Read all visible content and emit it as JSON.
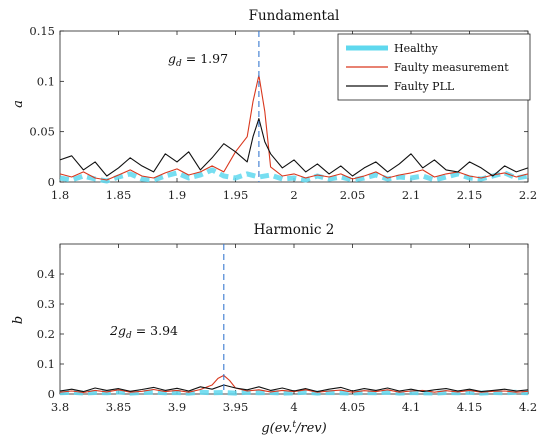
{
  "chart_data": [
    {
      "type": "line",
      "title": "Fundamental",
      "xlabel": "",
      "ylabel": "a",
      "xlim": [
        1.8,
        2.2
      ],
      "ylim": [
        0,
        0.15
      ],
      "xticks": [
        1.8,
        1.85,
        1.9,
        1.95,
        2,
        2.05,
        2.1,
        2.15,
        2.2
      ],
      "xtick_labels": [
        "1.8",
        "1.85",
        "1.9",
        "1.95",
        "2",
        "2.05",
        "2.1",
        "2.15",
        "2.2"
      ],
      "yticks": [
        0,
        0.05,
        0.1,
        0.15
      ],
      "ytick_labels": [
        "0",
        "0.05",
        "0.1",
        "0.15"
      ],
      "grid": false,
      "legend": "top-right",
      "annotation": {
        "text": "g_d = 1.97",
        "x": 1.97
      },
      "vline": {
        "x": 1.97,
        "color": "#3a7ad0",
        "style": "dashed"
      },
      "series": [
        {
          "name": "Healthy",
          "color": "#5fd8ee",
          "x": [
            1.8,
            1.81,
            1.82,
            1.83,
            1.84,
            1.85,
            1.86,
            1.87,
            1.88,
            1.89,
            1.9,
            1.91,
            1.92,
            1.93,
            1.94,
            1.95,
            1.96,
            1.97,
            1.98,
            1.99,
            2.0,
            2.01,
            2.02,
            2.03,
            2.04,
            2.05,
            2.06,
            2.07,
            2.08,
            2.09,
            2.1,
            2.11,
            2.12,
            2.13,
            2.14,
            2.15,
            2.16,
            2.17,
            2.18,
            2.19,
            2.2
          ],
          "values": [
            0.004,
            0.002,
            0.006,
            0.003,
            0.001,
            0.005,
            0.008,
            0.003,
            0.002,
            0.006,
            0.009,
            0.004,
            0.007,
            0.012,
            0.006,
            0.004,
            0.008,
            0.005,
            0.007,
            0.003,
            0.004,
            0.002,
            0.006,
            0.003,
            0.005,
            0.002,
            0.004,
            0.007,
            0.003,
            0.005,
            0.004,
            0.006,
            0.002,
            0.005,
            0.008,
            0.004,
            0.003,
            0.006,
            0.009,
            0.004,
            0.006
          ]
        },
        {
          "name": "Faulty measurement",
          "color": "#d9381e",
          "x": [
            1.8,
            1.81,
            1.82,
            1.83,
            1.84,
            1.85,
            1.86,
            1.87,
            1.88,
            1.89,
            1.9,
            1.91,
            1.92,
            1.93,
            1.94,
            1.95,
            1.96,
            1.965,
            1.97,
            1.975,
            1.98,
            1.99,
            2.0,
            2.01,
            2.02,
            2.03,
            2.04,
            2.05,
            2.06,
            2.07,
            2.08,
            2.09,
            2.1,
            2.11,
            2.12,
            2.13,
            2.14,
            2.15,
            2.16,
            2.17,
            2.18,
            2.19,
            2.2
          ],
          "values": [
            0.008,
            0.005,
            0.01,
            0.004,
            0.002,
            0.007,
            0.012,
            0.006,
            0.004,
            0.009,
            0.013,
            0.007,
            0.01,
            0.016,
            0.01,
            0.03,
            0.045,
            0.08,
            0.106,
            0.07,
            0.015,
            0.006,
            0.008,
            0.004,
            0.007,
            0.005,
            0.008,
            0.003,
            0.006,
            0.01,
            0.004,
            0.007,
            0.009,
            0.012,
            0.005,
            0.008,
            0.01,
            0.006,
            0.004,
            0.007,
            0.009,
            0.005,
            0.008
          ]
        },
        {
          "name": "Faulty PLL",
          "color": "#111111",
          "x": [
            1.8,
            1.81,
            1.82,
            1.83,
            1.84,
            1.85,
            1.86,
            1.87,
            1.88,
            1.89,
            1.9,
            1.91,
            1.92,
            1.93,
            1.94,
            1.95,
            1.96,
            1.965,
            1.97,
            1.975,
            1.98,
            1.99,
            2.0,
            2.01,
            2.02,
            2.03,
            2.04,
            2.05,
            2.06,
            2.07,
            2.08,
            2.09,
            2.1,
            2.11,
            2.12,
            2.13,
            2.14,
            2.15,
            2.16,
            2.17,
            2.18,
            2.19,
            2.2
          ],
          "values": [
            0.022,
            0.026,
            0.012,
            0.02,
            0.006,
            0.014,
            0.024,
            0.016,
            0.01,
            0.028,
            0.02,
            0.03,
            0.012,
            0.024,
            0.038,
            0.03,
            0.02,
            0.045,
            0.063,
            0.04,
            0.028,
            0.014,
            0.022,
            0.01,
            0.018,
            0.008,
            0.016,
            0.006,
            0.014,
            0.02,
            0.01,
            0.018,
            0.028,
            0.014,
            0.022,
            0.012,
            0.01,
            0.02,
            0.014,
            0.006,
            0.016,
            0.01,
            0.014
          ]
        }
      ]
    },
    {
      "type": "line",
      "title": "Harmonic 2",
      "xlabel": "g(ev.^t/rev)",
      "ylabel": "b",
      "xlim": [
        3.8,
        4.2
      ],
      "ylim": [
        0,
        0.5
      ],
      "xticks": [
        3.8,
        3.85,
        3.9,
        3.95,
        4,
        4.05,
        4.1,
        4.15,
        4.2
      ],
      "xtick_labels": [
        "3.8",
        "3.85",
        "3.9",
        "3.95",
        "4",
        "4.05",
        "4.1",
        "4.15",
        "4.2"
      ],
      "yticks": [
        0,
        0.1,
        0.2,
        0.3,
        0.4
      ],
      "ytick_labels": [
        "0",
        "0.1",
        "0.2",
        "0.3",
        "0.4"
      ],
      "grid": false,
      "legend": "none",
      "annotation": {
        "text": "2g_d = 3.94",
        "x": 3.94
      },
      "vline": {
        "x": 3.94,
        "color": "#3a7ad0",
        "style": "dashed"
      },
      "series": [
        {
          "name": "Healthy",
          "color": "#5fd8ee",
          "x": [
            3.8,
            3.81,
            3.82,
            3.83,
            3.84,
            3.85,
            3.86,
            3.87,
            3.88,
            3.89,
            3.9,
            3.91,
            3.92,
            3.93,
            3.94,
            3.95,
            3.96,
            3.97,
            3.98,
            3.99,
            4.0,
            4.01,
            4.02,
            4.03,
            4.04,
            4.05,
            4.06,
            4.07,
            4.08,
            4.09,
            4.1,
            4.11,
            4.12,
            4.13,
            4.14,
            4.15,
            4.16,
            4.17,
            4.18,
            4.19,
            4.2
          ],
          "values": [
            0.004,
            0.006,
            0.003,
            0.005,
            0.004,
            0.007,
            0.003,
            0.005,
            0.006,
            0.004,
            0.005,
            0.003,
            0.006,
            0.004,
            0.005,
            0.003,
            0.006,
            0.004,
            0.005,
            0.003,
            0.004,
            0.006,
            0.003,
            0.005,
            0.004,
            0.003,
            0.005,
            0.004,
            0.006,
            0.003,
            0.005,
            0.004,
            0.003,
            0.005,
            0.004,
            0.006,
            0.003,
            0.005,
            0.004,
            0.006,
            0.004
          ]
        },
        {
          "name": "Faulty measurement",
          "color": "#d9381e",
          "x": [
            3.8,
            3.81,
            3.82,
            3.83,
            3.84,
            3.85,
            3.86,
            3.87,
            3.88,
            3.89,
            3.9,
            3.91,
            3.92,
            3.93,
            3.935,
            3.94,
            3.945,
            3.95,
            3.96,
            3.97,
            3.98,
            3.99,
            4.0,
            4.01,
            4.02,
            4.03,
            4.04,
            4.05,
            4.06,
            4.07,
            4.08,
            4.09,
            4.1,
            4.11,
            4.12,
            4.13,
            4.14,
            4.15,
            4.16,
            4.17,
            4.18,
            4.19,
            4.2
          ],
          "values": [
            0.006,
            0.01,
            0.005,
            0.012,
            0.007,
            0.014,
            0.006,
            0.009,
            0.015,
            0.008,
            0.012,
            0.006,
            0.015,
            0.03,
            0.052,
            0.062,
            0.045,
            0.02,
            0.01,
            0.014,
            0.007,
            0.012,
            0.008,
            0.014,
            0.006,
            0.01,
            0.013,
            0.006,
            0.011,
            0.008,
            0.014,
            0.006,
            0.01,
            0.012,
            0.006,
            0.011,
            0.007,
            0.012,
            0.006,
            0.009,
            0.01,
            0.006,
            0.009
          ]
        },
        {
          "name": "Faulty PLL",
          "color": "#111111",
          "x": [
            3.8,
            3.81,
            3.82,
            3.83,
            3.84,
            3.85,
            3.86,
            3.87,
            3.88,
            3.89,
            3.9,
            3.91,
            3.92,
            3.93,
            3.94,
            3.95,
            3.96,
            3.97,
            3.98,
            3.99,
            4.0,
            4.01,
            4.02,
            4.03,
            4.04,
            4.05,
            4.06,
            4.07,
            4.08,
            4.09,
            4.1,
            4.11,
            4.12,
            4.13,
            4.14,
            4.15,
            4.16,
            4.17,
            4.18,
            4.19,
            4.2
          ],
          "values": [
            0.01,
            0.016,
            0.008,
            0.02,
            0.012,
            0.018,
            0.009,
            0.015,
            0.022,
            0.012,
            0.019,
            0.01,
            0.024,
            0.016,
            0.03,
            0.02,
            0.014,
            0.024,
            0.012,
            0.02,
            0.01,
            0.018,
            0.008,
            0.016,
            0.022,
            0.01,
            0.018,
            0.012,
            0.02,
            0.01,
            0.016,
            0.008,
            0.014,
            0.018,
            0.01,
            0.016,
            0.008,
            0.012,
            0.016,
            0.01,
            0.014
          ]
        }
      ]
    }
  ]
}
